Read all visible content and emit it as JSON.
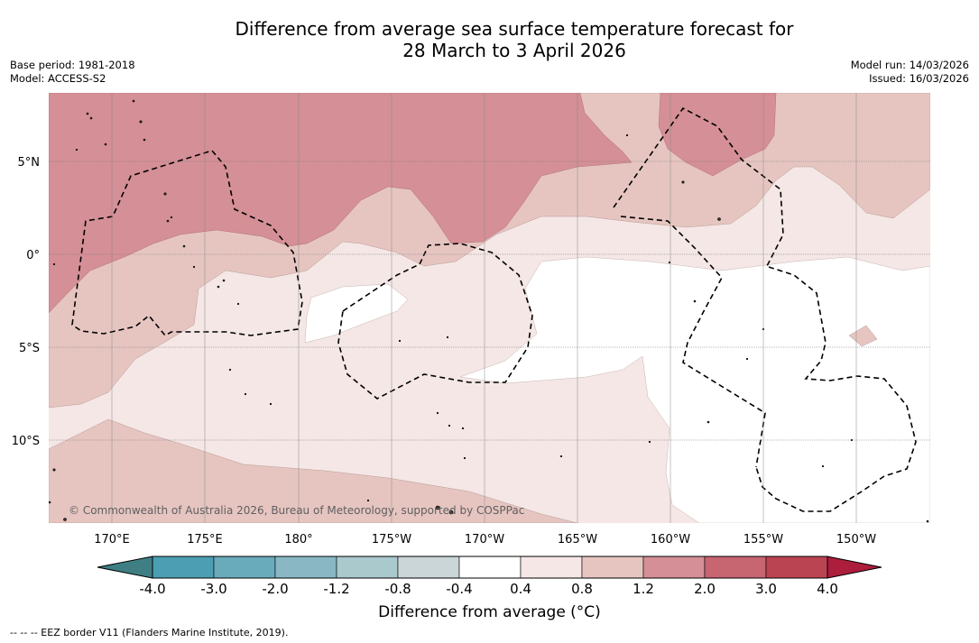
{
  "title": {
    "line1": "Difference from average sea surface temperature forecast for",
    "line2": "28 March to 3 April 2026"
  },
  "meta": {
    "base_period": "Base period: 1981-2018",
    "model": "Model: ACCESS-S2",
    "model_run": "Model run: 14/03/2026",
    "issued": "Issued: 16/03/2026"
  },
  "map": {
    "lat_labels": [
      "5°N",
      "0°",
      "5°S",
      "10°S"
    ],
    "lon_labels": [
      "170°E",
      "175°E",
      "180°",
      "175°W",
      "170°W",
      "165°W",
      "160°W",
      "155°W",
      "150°W"
    ],
    "copyright": "© Commonwealth of Australia 2026, Bureau of Meteorology, supported by COSPPac",
    "colors": {
      "dark_red": "#d58f96",
      "mid_red": "#e6c5c1",
      "light_red": "#f4e7e5",
      "white": "#ffffff",
      "border": "#000000"
    }
  },
  "colorbar": {
    "tick_labels": [
      "-4.0",
      "-3.0",
      "-2.0",
      "-1.2",
      "-0.8",
      "-0.4",
      "0.4",
      "0.8",
      "1.2",
      "2.0",
      "3.0",
      "4.0"
    ],
    "colors": [
      "#4c9fb2",
      "#6aabbb",
      "#89b8c4",
      "#a9c9cd",
      "#cbd6d8",
      "#ffffff",
      "#f4e7e5",
      "#e6c5c1",
      "#d58f96",
      "#c76570",
      "#bb4452"
    ],
    "under_color": "#3f7f84",
    "over_color": "#ad1d3c",
    "title": "Difference from average (°C)"
  },
  "footnote": "--  --  -- EEZ border V11 (Flanders Marine Institute, 2019)."
}
